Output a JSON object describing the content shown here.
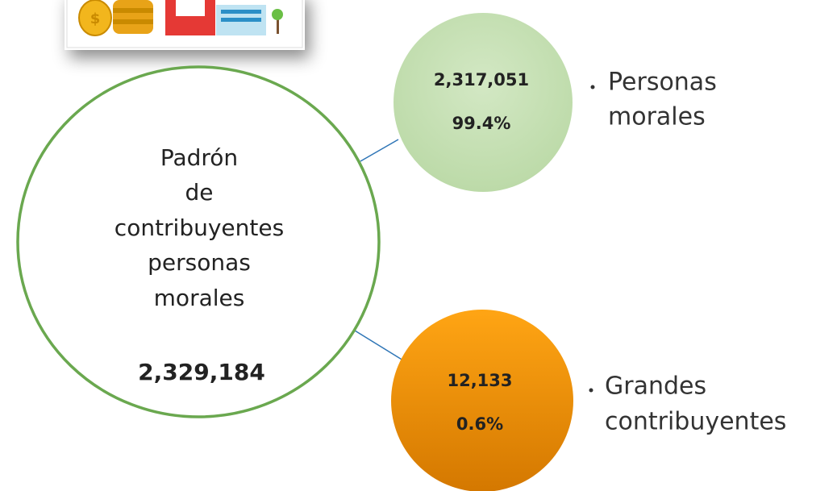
{
  "main": {
    "title_lines": [
      "Padrón",
      "de",
      "contribuyentes",
      "personas",
      "morales"
    ],
    "total": "2,329,184"
  },
  "nodes": [
    {
      "value": "2,317,051",
      "percent": "99.4%",
      "label_lines": [
        "Personas",
        "morales"
      ]
    },
    {
      "value": "12,133",
      "percent": "0.6%",
      "label_lines": [
        "Grandes",
        "contribuyentes"
      ]
    }
  ]
}
